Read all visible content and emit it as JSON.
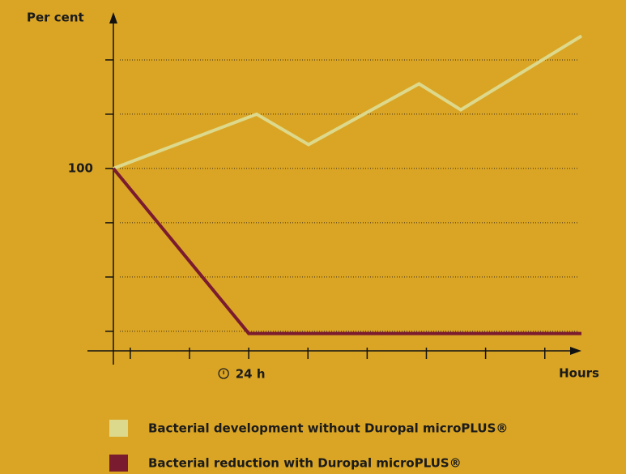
{
  "chart_data": {
    "type": "line",
    "y_label": "Per cent",
    "x_label": "Hours",
    "xlim": [
      0,
      83
    ],
    "ylim": [
      16,
      172
    ],
    "xticks": [
      3,
      13.5,
      {
        "value": 24,
        "label": "24 h"
      },
      34.5,
      45,
      55.5,
      66,
      76.5
    ],
    "yticks": [
      100
    ],
    "minor_yticks": [
      25,
      50,
      75,
      125,
      150
    ],
    "grid": true,
    "series": [
      {
        "name": "Bacterial development without Duropal microPLUS®",
        "color": "#DDD98C",
        "x": [
          0,
          25.4,
          34.6,
          54.2,
          61.6,
          83
        ],
        "values": [
          100,
          125,
          111,
          139,
          127,
          161
        ]
      },
      {
        "name": "Bacterial reduction with Duropal microPLUS®",
        "color": "#7A1B2F",
        "x": [
          0,
          24,
          83
        ],
        "values": [
          100,
          24,
          24
        ]
      }
    ]
  }
}
